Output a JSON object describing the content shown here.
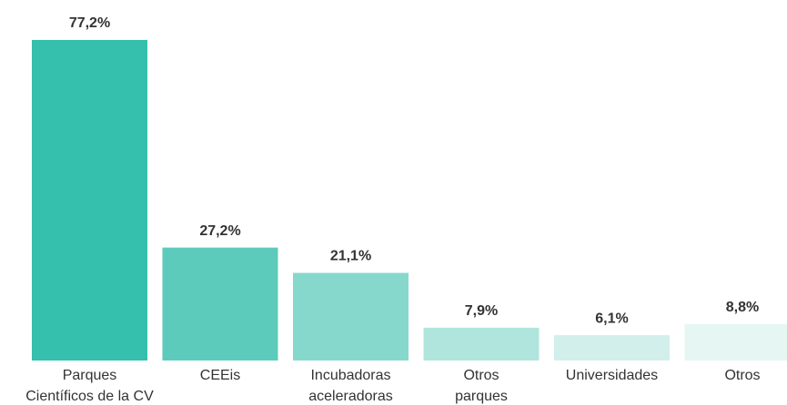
{
  "chart_data": {
    "type": "bar",
    "categories": [
      [
        "Parques",
        "Científicos de la CV"
      ],
      [
        "CEEis"
      ],
      [
        "Incubadoras",
        "aceleradoras"
      ],
      [
        "Otros",
        "parques"
      ],
      [
        "Universidades"
      ],
      [
        "Otros"
      ]
    ],
    "values": [
      77.2,
      27.2,
      21.1,
      7.9,
      6.1,
      8.8
    ],
    "value_labels": [
      "77,2%",
      "27,2%",
      "21,1%",
      "7,9%",
      "6,1%",
      "8,8%"
    ],
    "colors": [
      "#35bfad",
      "#5ccbbb",
      "#86d8cc",
      "#b0e5dd",
      "#d2efeb",
      "#e6f6f3"
    ]
  }
}
